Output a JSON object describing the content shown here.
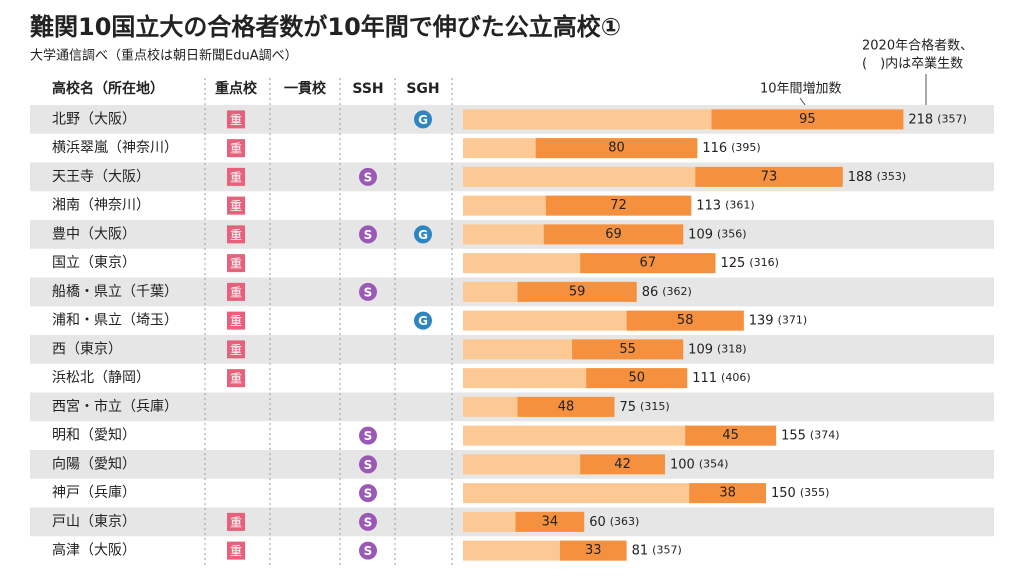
{
  "title": "難関10国立大の合格者数が10年間で伸びた公立高校①",
  "subtitle": "大学通信調べ（重点校は朝日新聞EduA調べ）",
  "note_increase": "10年間増加数",
  "note_total": [
    "2020年合格者数、",
    "(　)内は卒業生数"
  ],
  "headers": [
    "高校名（所在地）",
    "重点校",
    "一貫校",
    "SSH",
    "SGH"
  ],
  "badges": {
    "key": "重",
    "ssh": "S",
    "sgh": "G"
  },
  "rows": [
    {
      "name": "北野（大阪）",
      "key": true,
      "ssh": false,
      "sgh": true,
      "increase": 95,
      "total": 218,
      "graduates": "(357)"
    },
    {
      "name": "横浜翠嵐（神奈川）",
      "key": true,
      "ssh": false,
      "sgh": false,
      "increase": 80,
      "total": 116,
      "graduates": "(395)"
    },
    {
      "name": "天王寺（大阪）",
      "key": true,
      "ssh": true,
      "sgh": false,
      "increase": 73,
      "total": 188,
      "graduates": "(353)"
    },
    {
      "name": "湘南（神奈川）",
      "key": true,
      "ssh": false,
      "sgh": false,
      "increase": 72,
      "total": 113,
      "graduates": "(361)"
    },
    {
      "name": "豊中（大阪）",
      "key": true,
      "ssh": true,
      "sgh": true,
      "increase": 69,
      "total": 109,
      "graduates": "(356)"
    },
    {
      "name": "国立（東京）",
      "key": true,
      "ssh": false,
      "sgh": false,
      "increase": 67,
      "total": 125,
      "graduates": "(316)"
    },
    {
      "name": "船橋・県立（千葉）",
      "key": true,
      "ssh": true,
      "sgh": false,
      "increase": 59,
      "total": 86,
      "graduates": "(362)"
    },
    {
      "name": "浦和・県立（埼玉）",
      "key": true,
      "ssh": false,
      "sgh": true,
      "increase": 58,
      "total": 139,
      "graduates": "(371)"
    },
    {
      "name": "西（東京）",
      "key": true,
      "ssh": false,
      "sgh": false,
      "increase": 55,
      "total": 109,
      "graduates": "(318)"
    },
    {
      "name": "浜松北（静岡）",
      "key": true,
      "ssh": false,
      "sgh": false,
      "increase": 50,
      "total": 111,
      "graduates": "(406)"
    },
    {
      "name": "西宮・市立（兵庫）",
      "key": false,
      "ssh": false,
      "sgh": false,
      "increase": 48,
      "total": 75,
      "graduates": "(315)"
    },
    {
      "name": "明和（愛知）",
      "key": false,
      "ssh": true,
      "sgh": false,
      "increase": 45,
      "total": 155,
      "graduates": "(374)"
    },
    {
      "name": "向陽（愛知）",
      "key": false,
      "ssh": true,
      "sgh": false,
      "increase": 42,
      "total": 100,
      "graduates": "(354)"
    },
    {
      "name": "神戸（兵庫）",
      "key": false,
      "ssh": true,
      "sgh": false,
      "increase": 38,
      "total": 150,
      "graduates": "(355)"
    },
    {
      "name": "戸山（東京）",
      "key": true,
      "ssh": true,
      "sgh": false,
      "increase": 34,
      "total": 60,
      "graduates": "(363)"
    },
    {
      "name": "高津（大阪）",
      "key": true,
      "ssh": true,
      "sgh": false,
      "increase": 33,
      "total": 81,
      "graduates": "(357)"
    }
  ]
}
